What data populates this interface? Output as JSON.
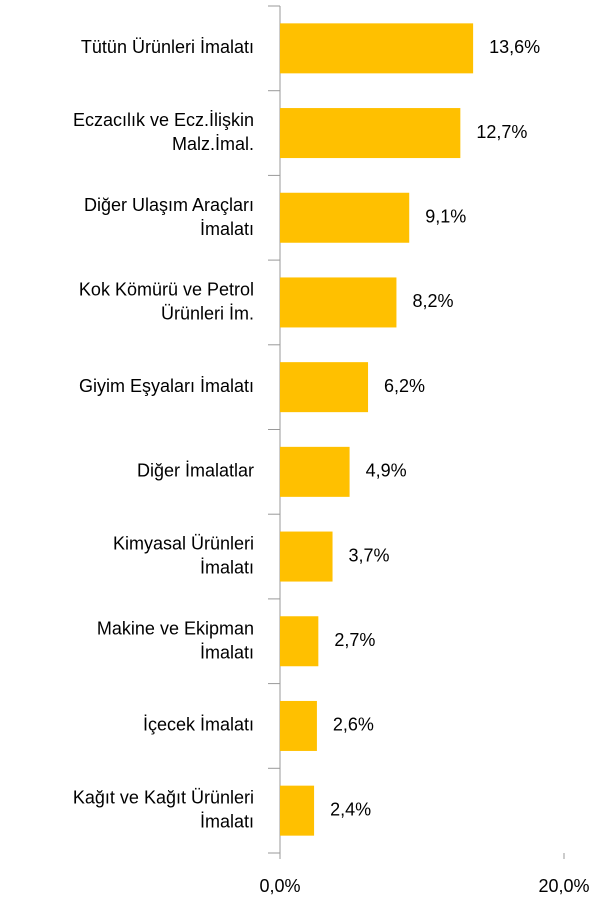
{
  "chart_data": {
    "type": "bar",
    "orientation": "horizontal",
    "categories": [
      "Tütün Ürünleri İmalatı",
      "Eczacılık ve Ecz.İlişkin\nMalz.İmal.",
      "Diğer Ulaşım Araçları\nİmalatı",
      "Kok Kömürü ve Petrol\nÜrünleri İm.",
      "Giyim Eşyaları İmalatı",
      "Diğer İmalatlar",
      "Kimyasal Ürünleri\nİmalatı",
      "Makine ve Ekipman\nİmalatı",
      "İçecek İmalatı",
      "Kağıt ve Kağıt Ürünleri\nİmalatı"
    ],
    "values": [
      13.6,
      12.7,
      9.1,
      8.2,
      6.2,
      4.9,
      3.7,
      2.7,
      2.6,
      2.4
    ],
    "value_labels": [
      "13,6%",
      "12,7%",
      "9,1%",
      "8,2%",
      "6,2%",
      "4,9%",
      "3,7%",
      "2,7%",
      "2,6%",
      "2,4%"
    ],
    "color": "#ffc000",
    "xlim": [
      0,
      20
    ],
    "xticks": [
      {
        "value": 0,
        "label": "0,0%"
      },
      {
        "value": 20,
        "label": "20,0%"
      }
    ]
  }
}
